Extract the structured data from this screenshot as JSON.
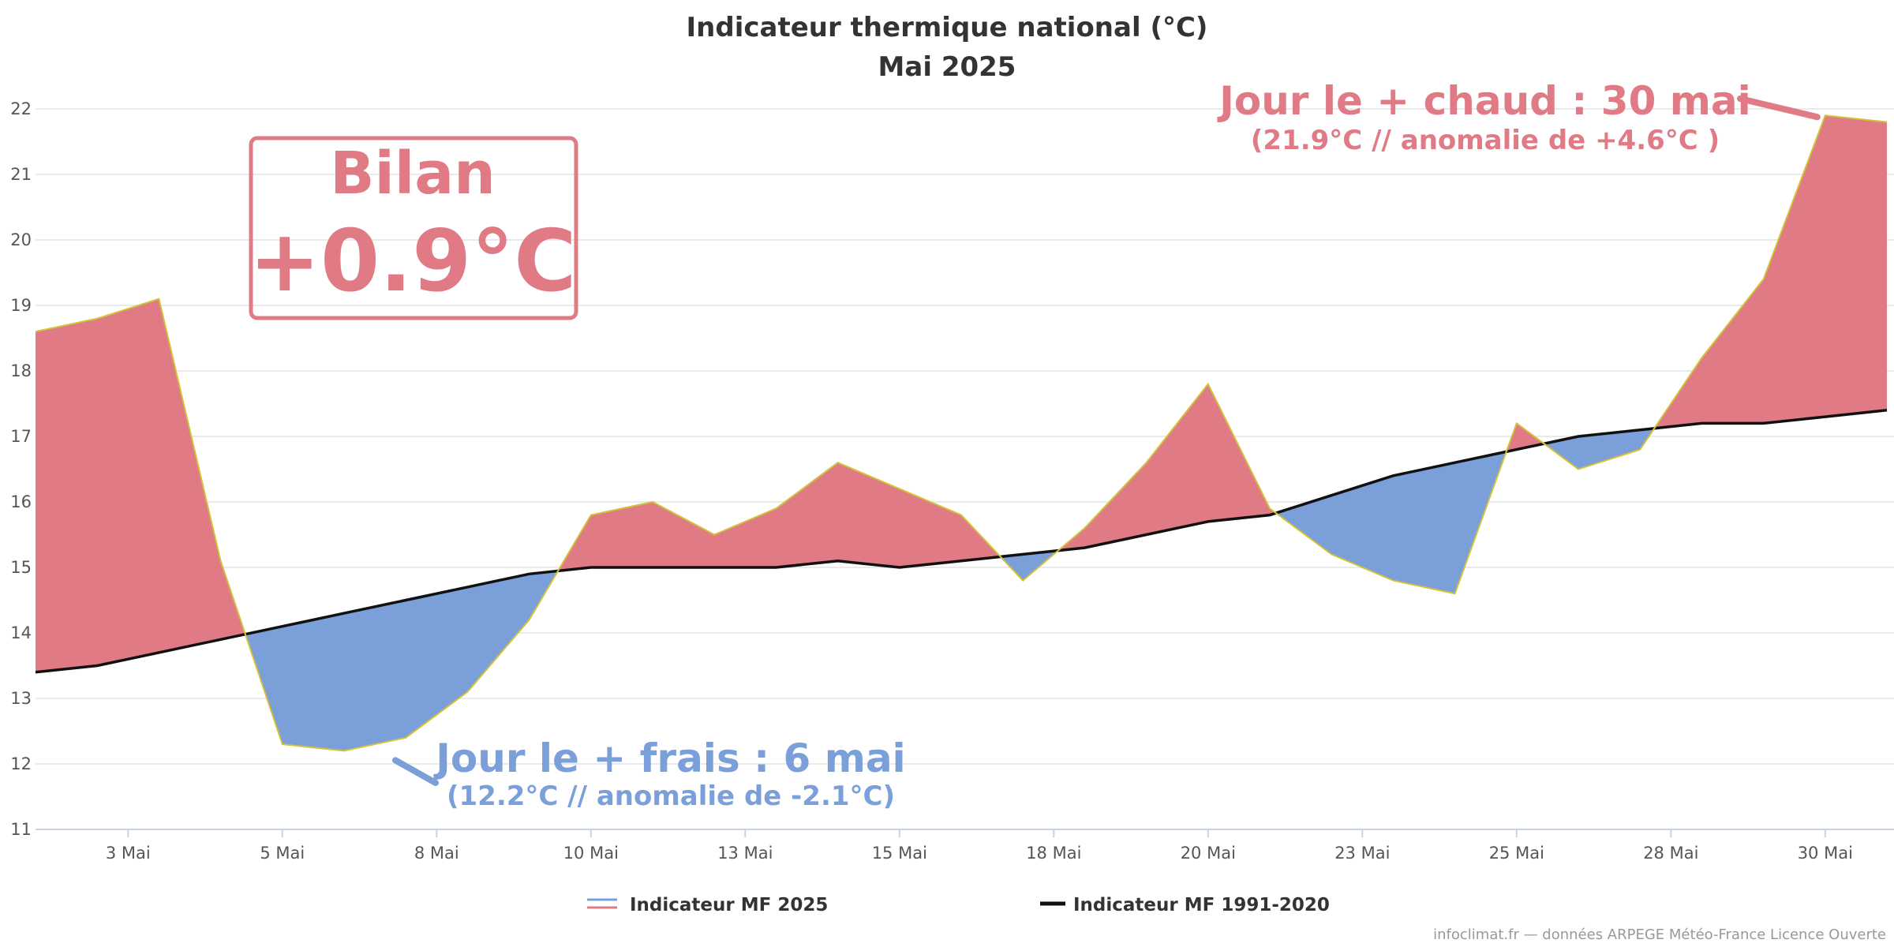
{
  "colors": {
    "warm": "#e07b86",
    "cold": "#7a9fd9",
    "normal_line": "#111111",
    "obs_line": "#d4c23a",
    "grid": "#e4e4e4",
    "axis": "#c8d3e6"
  },
  "chart_data": {
    "type": "area",
    "title": "Indicateur thermique national (°C)",
    "subtitle": "Mai 2025",
    "ylim": [
      11,
      22
    ],
    "y_ticks": [
      11,
      12,
      13,
      14,
      15,
      16,
      17,
      18,
      19,
      20,
      21,
      22
    ],
    "x_ticks": [
      {
        "day": 2.5,
        "label": "3 Mai"
      },
      {
        "day": 5,
        "label": "5 Mai"
      },
      {
        "day": 7.5,
        "label": "8 Mai"
      },
      {
        "day": 10,
        "label": "10 Mai"
      },
      {
        "day": 12.5,
        "label": "13 Mai"
      },
      {
        "day": 15,
        "label": "15 Mai"
      },
      {
        "day": 17.5,
        "label": "18 Mai"
      },
      {
        "day": 20,
        "label": "20 Mai"
      },
      {
        "day": 22.5,
        "label": "23 Mai"
      },
      {
        "day": 25,
        "label": "25 Mai"
      },
      {
        "day": 27.5,
        "label": "28 Mai"
      },
      {
        "day": 30,
        "label": "30 Mai"
      }
    ],
    "series": [
      {
        "name": "Indicateur MF 2025",
        "x": [
          1,
          2,
          3,
          4,
          5,
          6,
          7,
          8,
          9,
          10,
          11,
          12,
          13,
          14,
          15,
          16,
          17,
          18,
          19,
          20,
          21,
          22,
          23,
          24,
          25,
          26,
          27,
          28,
          29,
          30,
          31
        ],
        "values": [
          18.6,
          18.8,
          19.1,
          15.1,
          12.3,
          12.2,
          12.4,
          13.1,
          14.2,
          15.8,
          16.0,
          15.5,
          15.9,
          16.6,
          16.2,
          15.8,
          14.8,
          15.6,
          16.6,
          17.8,
          15.9,
          15.2,
          14.8,
          14.6,
          17.2,
          16.5,
          16.8,
          18.2,
          19.4,
          21.9,
          21.8
        ]
      },
      {
        "name": "Indicateur MF 1991-2020",
        "x": [
          1,
          2,
          3,
          4,
          5,
          6,
          7,
          8,
          9,
          10,
          11,
          12,
          13,
          14,
          15,
          16,
          17,
          18,
          19,
          20,
          21,
          22,
          23,
          24,
          25,
          26,
          27,
          28,
          29,
          30,
          31
        ],
        "values": [
          13.4,
          13.5,
          13.7,
          13.9,
          14.1,
          14.3,
          14.5,
          14.7,
          14.9,
          15.0,
          15.0,
          15.0,
          15.0,
          15.1,
          15.0,
          15.1,
          15.2,
          15.3,
          15.5,
          15.7,
          15.8,
          16.1,
          16.4,
          16.6,
          16.8,
          17.0,
          17.1,
          17.2,
          17.2,
          17.3,
          17.4
        ]
      }
    ],
    "legend": {
      "placement": "bottom",
      "items": [
        "Indicateur MF 2025",
        "Indicateur MF 1991-2020"
      ]
    },
    "annotations": {
      "bilan_label": "Bilan",
      "bilan_value": "+0.9°C",
      "hot_title": "Jour le + chaud : 30 mai",
      "hot_detail": "(21.9°C // anomalie de +4.6°C )",
      "hot_day": 30,
      "hot_value": 21.9,
      "cold_title": "Jour le + frais : 6 mai",
      "cold_detail": "(12.2°C // anomalie de -2.1°C)",
      "cold_day": 6,
      "cold_value": 12.2
    },
    "grid": true
  },
  "credit": "infoclimat.fr — données ARPEGE Météo-France Licence Ouverte"
}
